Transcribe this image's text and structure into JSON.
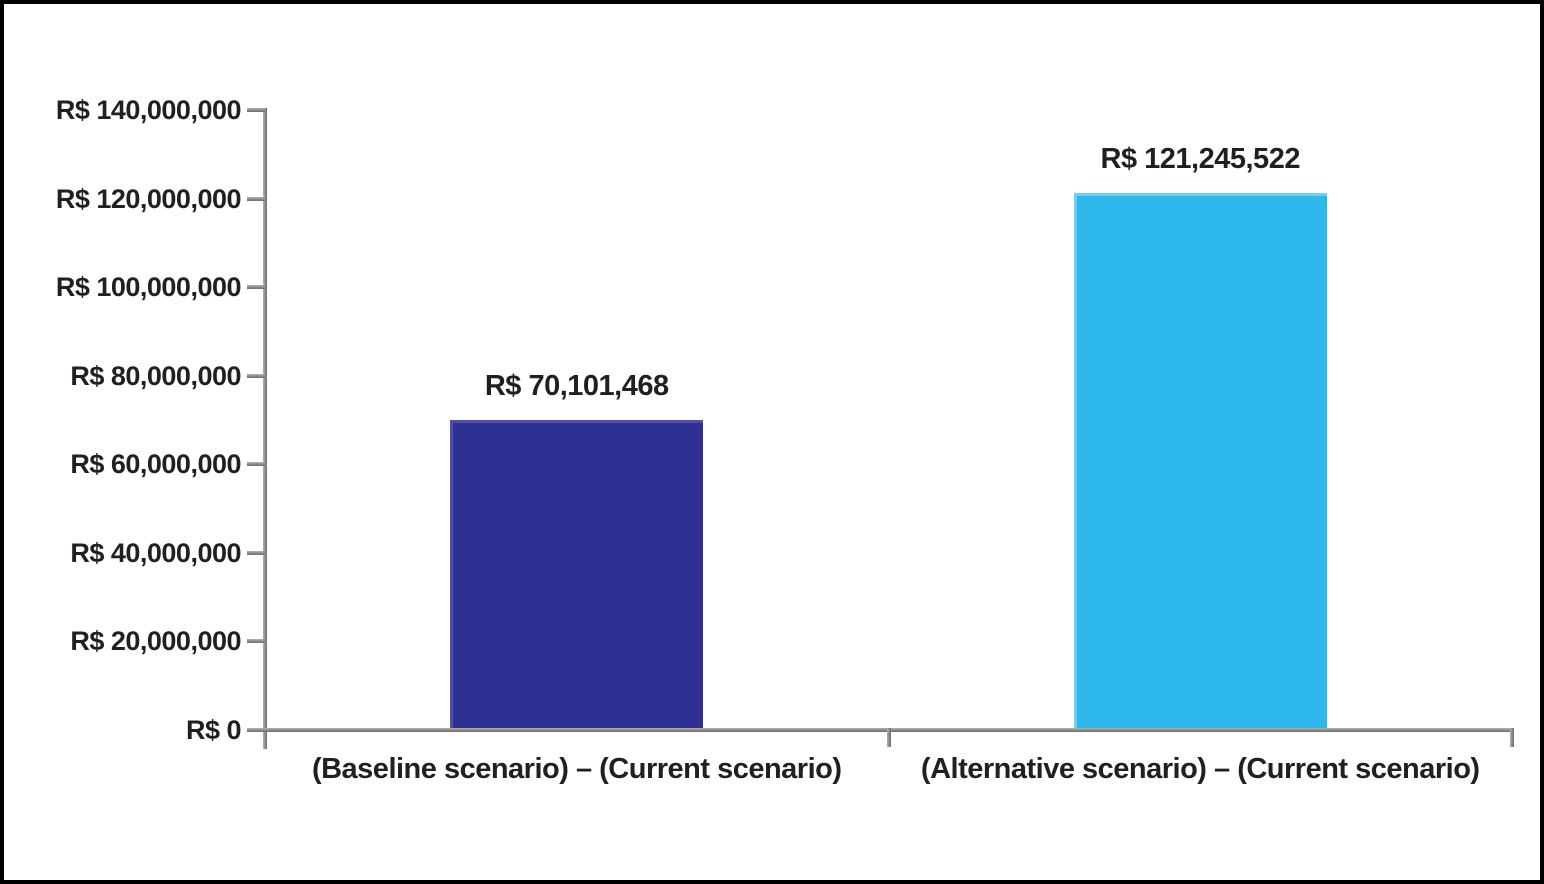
{
  "chart_data": {
    "type": "bar",
    "title": "",
    "currency_prefix": "R$",
    "categories": [
      "(Baseline scenario) – (Current scenario)",
      "(Alternative scenario) – (Current scenario)"
    ],
    "values": [
      70101468,
      121245522
    ],
    "value_labels": [
      "R$ 70,101,468",
      "R$ 121,245,522"
    ],
    "bar_colors": [
      "#2e3192",
      "#2fb8ec"
    ],
    "bar_highlight_colors": [
      "#4d51a8",
      "#6ed0f5"
    ],
    "ylim": [
      0,
      140000000
    ],
    "yticks": [
      {
        "value": 0,
        "label": "R$ 0"
      },
      {
        "value": 20000000,
        "label": "R$ 20,000,000"
      },
      {
        "value": 40000000,
        "label": "R$ 40,000,000"
      },
      {
        "value": 60000000,
        "label": "R$ 60,000,000"
      },
      {
        "value": 80000000,
        "label": "R$ 80,000,000"
      },
      {
        "value": 100000000,
        "label": "R$ 100,000,000"
      },
      {
        "value": 120000000,
        "label": "R$ 120,000,000"
      },
      {
        "value": 140000000,
        "label": "R$ 140,000,000"
      }
    ],
    "xlabel": "",
    "ylabel": "",
    "grid": false,
    "legend": null
  },
  "colors": {
    "axis": "#8d8781",
    "text": "#231f20",
    "frame_border": "#000000",
    "background": "#ffffff"
  }
}
